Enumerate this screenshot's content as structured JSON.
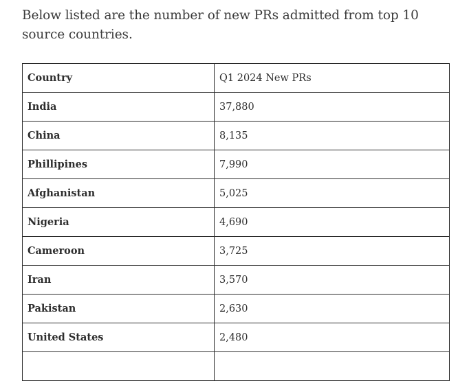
{
  "intro_text": "Below listed are the number of new PRs admitted from top 10 source countries.",
  "table": {
    "headers": [
      "Country",
      "Q1 2024 New PRs"
    ],
    "rows": [
      {
        "country": "India",
        "prs": "37,880"
      },
      {
        "country": "China",
        "prs": "8,135"
      },
      {
        "country": "Phillipines",
        "prs": "7,990"
      },
      {
        "country": "Afghanistan",
        "prs": "5,025"
      },
      {
        "country": "Nigeria",
        "prs": "4,690"
      },
      {
        "country": "Cameroon",
        "prs": "3,725"
      },
      {
        "country": "Iran",
        "prs": "3,570"
      },
      {
        "country": "Pakistan",
        "prs": "2,630"
      },
      {
        "country": "United States",
        "prs": "2,480"
      },
      {
        "country": "",
        "prs": ""
      }
    ]
  }
}
